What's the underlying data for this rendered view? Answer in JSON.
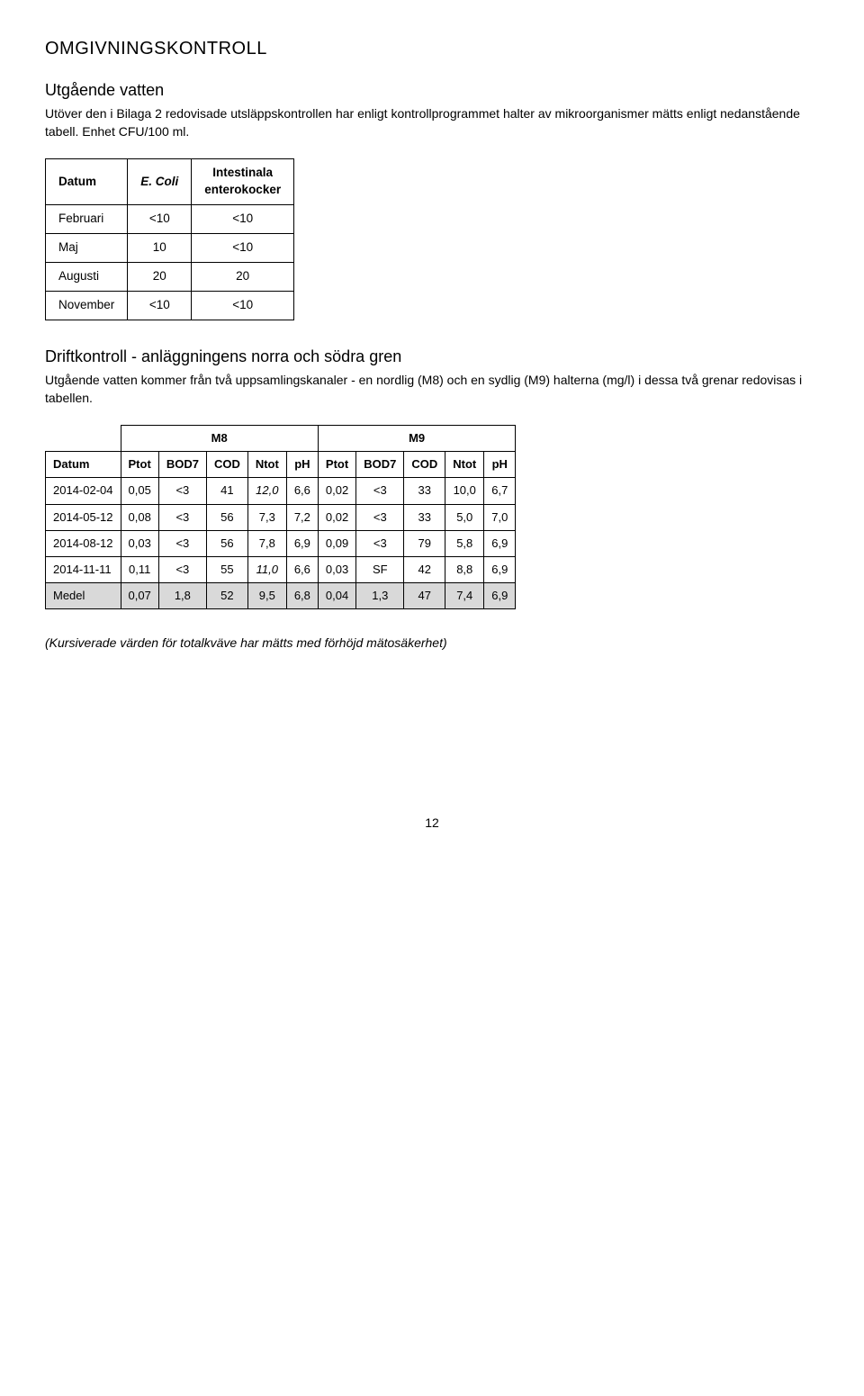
{
  "heading_main": "OMGIVNINGSKONTROLL",
  "section1": {
    "title": "Utgående vatten",
    "intro": "Utöver den i Bilaga 2 redovisade utsläppskontrollen har enligt kontrollprogrammet halter av mikroorganismer mätts enligt nedanstående tabell. Enhet CFU/100 ml."
  },
  "table1": {
    "headers": {
      "h1": "Datum",
      "h2": "E. Coli",
      "h3_l1": "Intestinala",
      "h3_l2": "enterokocker"
    },
    "rows": [
      {
        "m": "Februari",
        "a": "<10",
        "b": "<10"
      },
      {
        "m": "Maj",
        "a": "10",
        "b": "<10"
      },
      {
        "m": "Augusti",
        "a": "20",
        "b": "20"
      },
      {
        "m": "November",
        "a": "<10",
        "b": "<10"
      }
    ]
  },
  "section2": {
    "title": "Driftkontroll - anläggningens norra och södra gren",
    "intro": "Utgående vatten kommer från två uppsamlingskanaler - en nordlig (M8) och en sydlig (M9) halterna (mg/l) i dessa två grenar redovisas i tabellen."
  },
  "table2": {
    "group_m8": "M8",
    "group_m9": "M9",
    "headers": {
      "date": "Datum",
      "ptot": "Ptot",
      "bod7": "BOD7",
      "cod": "COD",
      "ntot": "Ntot",
      "ph": "pH"
    },
    "rows": [
      {
        "date": "2014-02-04",
        "m8": {
          "ptot": "0,05",
          "bod7": "<3",
          "cod": "41",
          "ntot": "12,0",
          "ntot_ital": true,
          "ph": "6,6"
        },
        "m9": {
          "ptot": "0,02",
          "bod7": "<3",
          "cod": "33",
          "ntot": "10,0",
          "ntot_ital": false,
          "ph": "6,7"
        }
      },
      {
        "date": "2014-05-12",
        "m8": {
          "ptot": "0,08",
          "bod7": "<3",
          "cod": "56",
          "ntot": "7,3",
          "ntot_ital": false,
          "ph": "7,2"
        },
        "m9": {
          "ptot": "0,02",
          "bod7": "<3",
          "cod": "33",
          "ntot": "5,0",
          "ntot_ital": false,
          "ph": "7,0"
        }
      },
      {
        "date": "2014-08-12",
        "m8": {
          "ptot": "0,03",
          "bod7": "<3",
          "cod": "56",
          "ntot": "7,8",
          "ntot_ital": false,
          "ph": "6,9"
        },
        "m9": {
          "ptot": "0,09",
          "bod7": "<3",
          "cod": "79",
          "ntot": "5,8",
          "ntot_ital": false,
          "ph": "6,9"
        }
      },
      {
        "date": "2014-11-11",
        "m8": {
          "ptot": "0,11",
          "bod7": "<3",
          "cod": "55",
          "ntot": "11,0",
          "ntot_ital": true,
          "ph": "6,6"
        },
        "m9": {
          "ptot": "0,03",
          "bod7": "SF",
          "cod": "42",
          "ntot": "8,8",
          "ntot_ital": false,
          "ph": "6,9"
        }
      }
    ],
    "medel": {
      "label": "Medel",
      "m8": {
        "ptot": "0,07",
        "bod7": "1,8",
        "cod": "52",
        "ntot": "9,5",
        "ph": "6,8"
      },
      "m9": {
        "ptot": "0,04",
        "bod7": "1,3",
        "cod": "47",
        "ntot": "7,4",
        "ph": "6,9"
      }
    }
  },
  "footnote": "(Kursiverade värden för totalkväve har mätts med förhöjd mätosäkerhet)",
  "page_number": "12"
}
